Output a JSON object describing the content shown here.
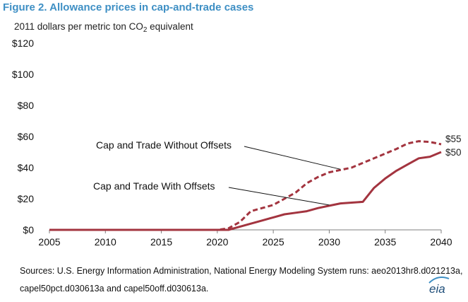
{
  "figure": {
    "title": "Figure 2. Allowance prices in cap-and-trade cases",
    "unit_prefix": "2011 dollars per metric ton CO",
    "unit_subscript": "2",
    "unit_suffix": " equivalent",
    "source_line1": "Sources: U.S. Energy Information Administration, National Energy Modeling System runs: aeo2013hr8.d021213a,",
    "source_line2": "capel50pct.d030613a and capel50off.d030613a.",
    "logo_text": "eia"
  },
  "colors": {
    "title": "#3e8fc4",
    "series": "#a3343f",
    "axis": "#7f7f7f",
    "logo": "#1f4e79"
  },
  "chart_data": {
    "type": "line",
    "title": "Allowance prices in cap-and-trade cases",
    "xlabel": "",
    "ylabel": "2011 dollars per metric ton CO2 equivalent",
    "xlim": [
      2005,
      2040
    ],
    "ylim": [
      0,
      120
    ],
    "grid": false,
    "legend": "none (inline line labels)",
    "x_ticks": [
      "2005",
      "2010",
      "2015",
      "2020",
      "2025",
      "2030",
      "2035",
      "2040"
    ],
    "y_ticks": [
      "$0",
      "$20",
      "$40",
      "$60",
      "$80",
      "$100",
      "$120"
    ],
    "x": [
      2005,
      2006,
      2007,
      2008,
      2009,
      2010,
      2011,
      2012,
      2013,
      2014,
      2015,
      2016,
      2017,
      2018,
      2019,
      2020,
      2021,
      2022,
      2023,
      2024,
      2025,
      2026,
      2027,
      2028,
      2029,
      2030,
      2031,
      2032,
      2033,
      2034,
      2035,
      2036,
      2037,
      2038,
      2039,
      2040
    ],
    "series": [
      {
        "name": "Cap and Trade Without Offsets",
        "style": "dashed",
        "end_label": "$55",
        "values": [
          0,
          0,
          0,
          0,
          0,
          0,
          0,
          0,
          0,
          0,
          0,
          0,
          0,
          0,
          0,
          0,
          1,
          5,
          12,
          14,
          16,
          20,
          24,
          30,
          34,
          37,
          38.5,
          40,
          43,
          46,
          49,
          52,
          55.5,
          57,
          56.5,
          55
        ]
      },
      {
        "name": "Cap and Trade With Offsets",
        "style": "solid",
        "end_label": "$50",
        "values": [
          0,
          0,
          0,
          0,
          0,
          0,
          0,
          0,
          0,
          0,
          0,
          0,
          0,
          0,
          0,
          0,
          0,
          2,
          4,
          6,
          8,
          10,
          11,
          12,
          14,
          15.5,
          17,
          17.5,
          18,
          27,
          33,
          38,
          42,
          46,
          47,
          50
        ]
      }
    ]
  }
}
